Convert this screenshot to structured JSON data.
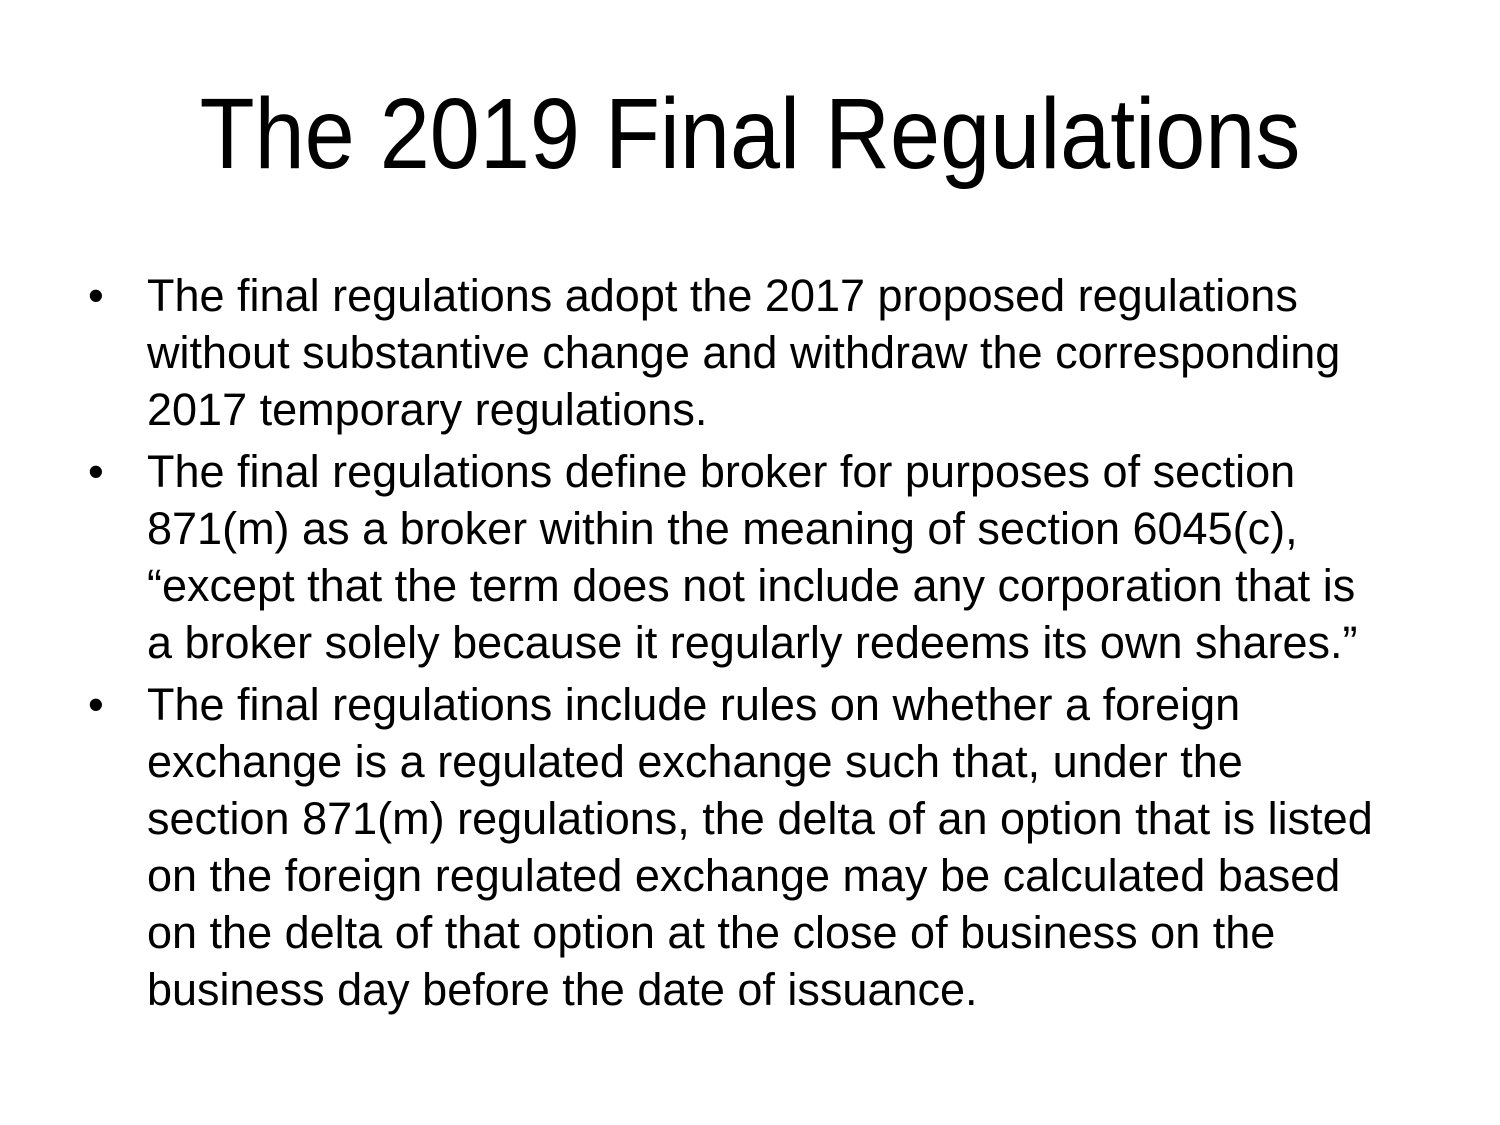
{
  "colors": {
    "background": "#ffffff",
    "text": "#000000"
  },
  "slide": {
    "title": "The 2019 Final Regulations",
    "bullet_char": "•",
    "bullets": [
      {
        "text": "The final regulations adopt the 2017 proposed regulations\nwithout substantive change and withdraw the corresponding\n2017 temporary regulations."
      },
      {
        "text": "The final regulations define broker for purposes of section\n871(m) as a broker within the meaning of section 6045(c),\n“except that the term does not include any corporation that is\na broker solely because it regularly redeems its own shares.”"
      },
      {
        "text": "The final regulations include rules on whether a foreign\nexchange is a regulated exchange such that, under the\nsection 871(m) regulations, the delta of an option that is listed\non the foreign regulated exchange may be calculated based\non the delta of that option at the close of business on the\nbusiness day before the date of issuance."
      }
    ]
  }
}
